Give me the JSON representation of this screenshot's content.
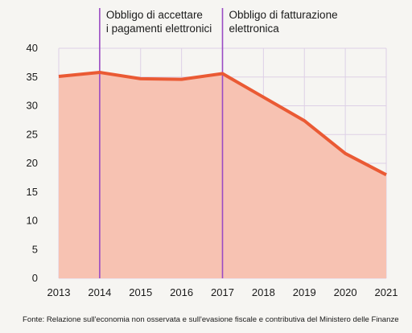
{
  "chart_data": {
    "type": "area",
    "x": [
      "2013",
      "2014",
      "2015",
      "2016",
      "2017",
      "2018",
      "2019",
      "2020",
      "2021"
    ],
    "values": [
      35.1,
      35.8,
      34.7,
      34.6,
      35.6,
      31.5,
      27.4,
      21.7,
      18.0
    ],
    "ylim": [
      0,
      40
    ],
    "yticks": [
      "0",
      "5",
      "10",
      "15",
      "20",
      "25",
      "30",
      "35",
      "40"
    ],
    "grid": true,
    "colors": {
      "line": "#ea5a34",
      "fill": "#f7c2b2",
      "grid": "#ddd0e6",
      "marker": "#9a4bc4"
    },
    "annotations": [
      {
        "x": "2014",
        "lines": [
          "Obbligo di accettare",
          "i pagamenti elettronici"
        ]
      },
      {
        "x": "2017",
        "lines": [
          "Obbligo di fatturazione",
          "elettronica"
        ]
      }
    ]
  },
  "source": "Fonte: Relazione sull'economia non osservata e sull'evasione fiscale e contributiva del Ministero delle Finanze"
}
